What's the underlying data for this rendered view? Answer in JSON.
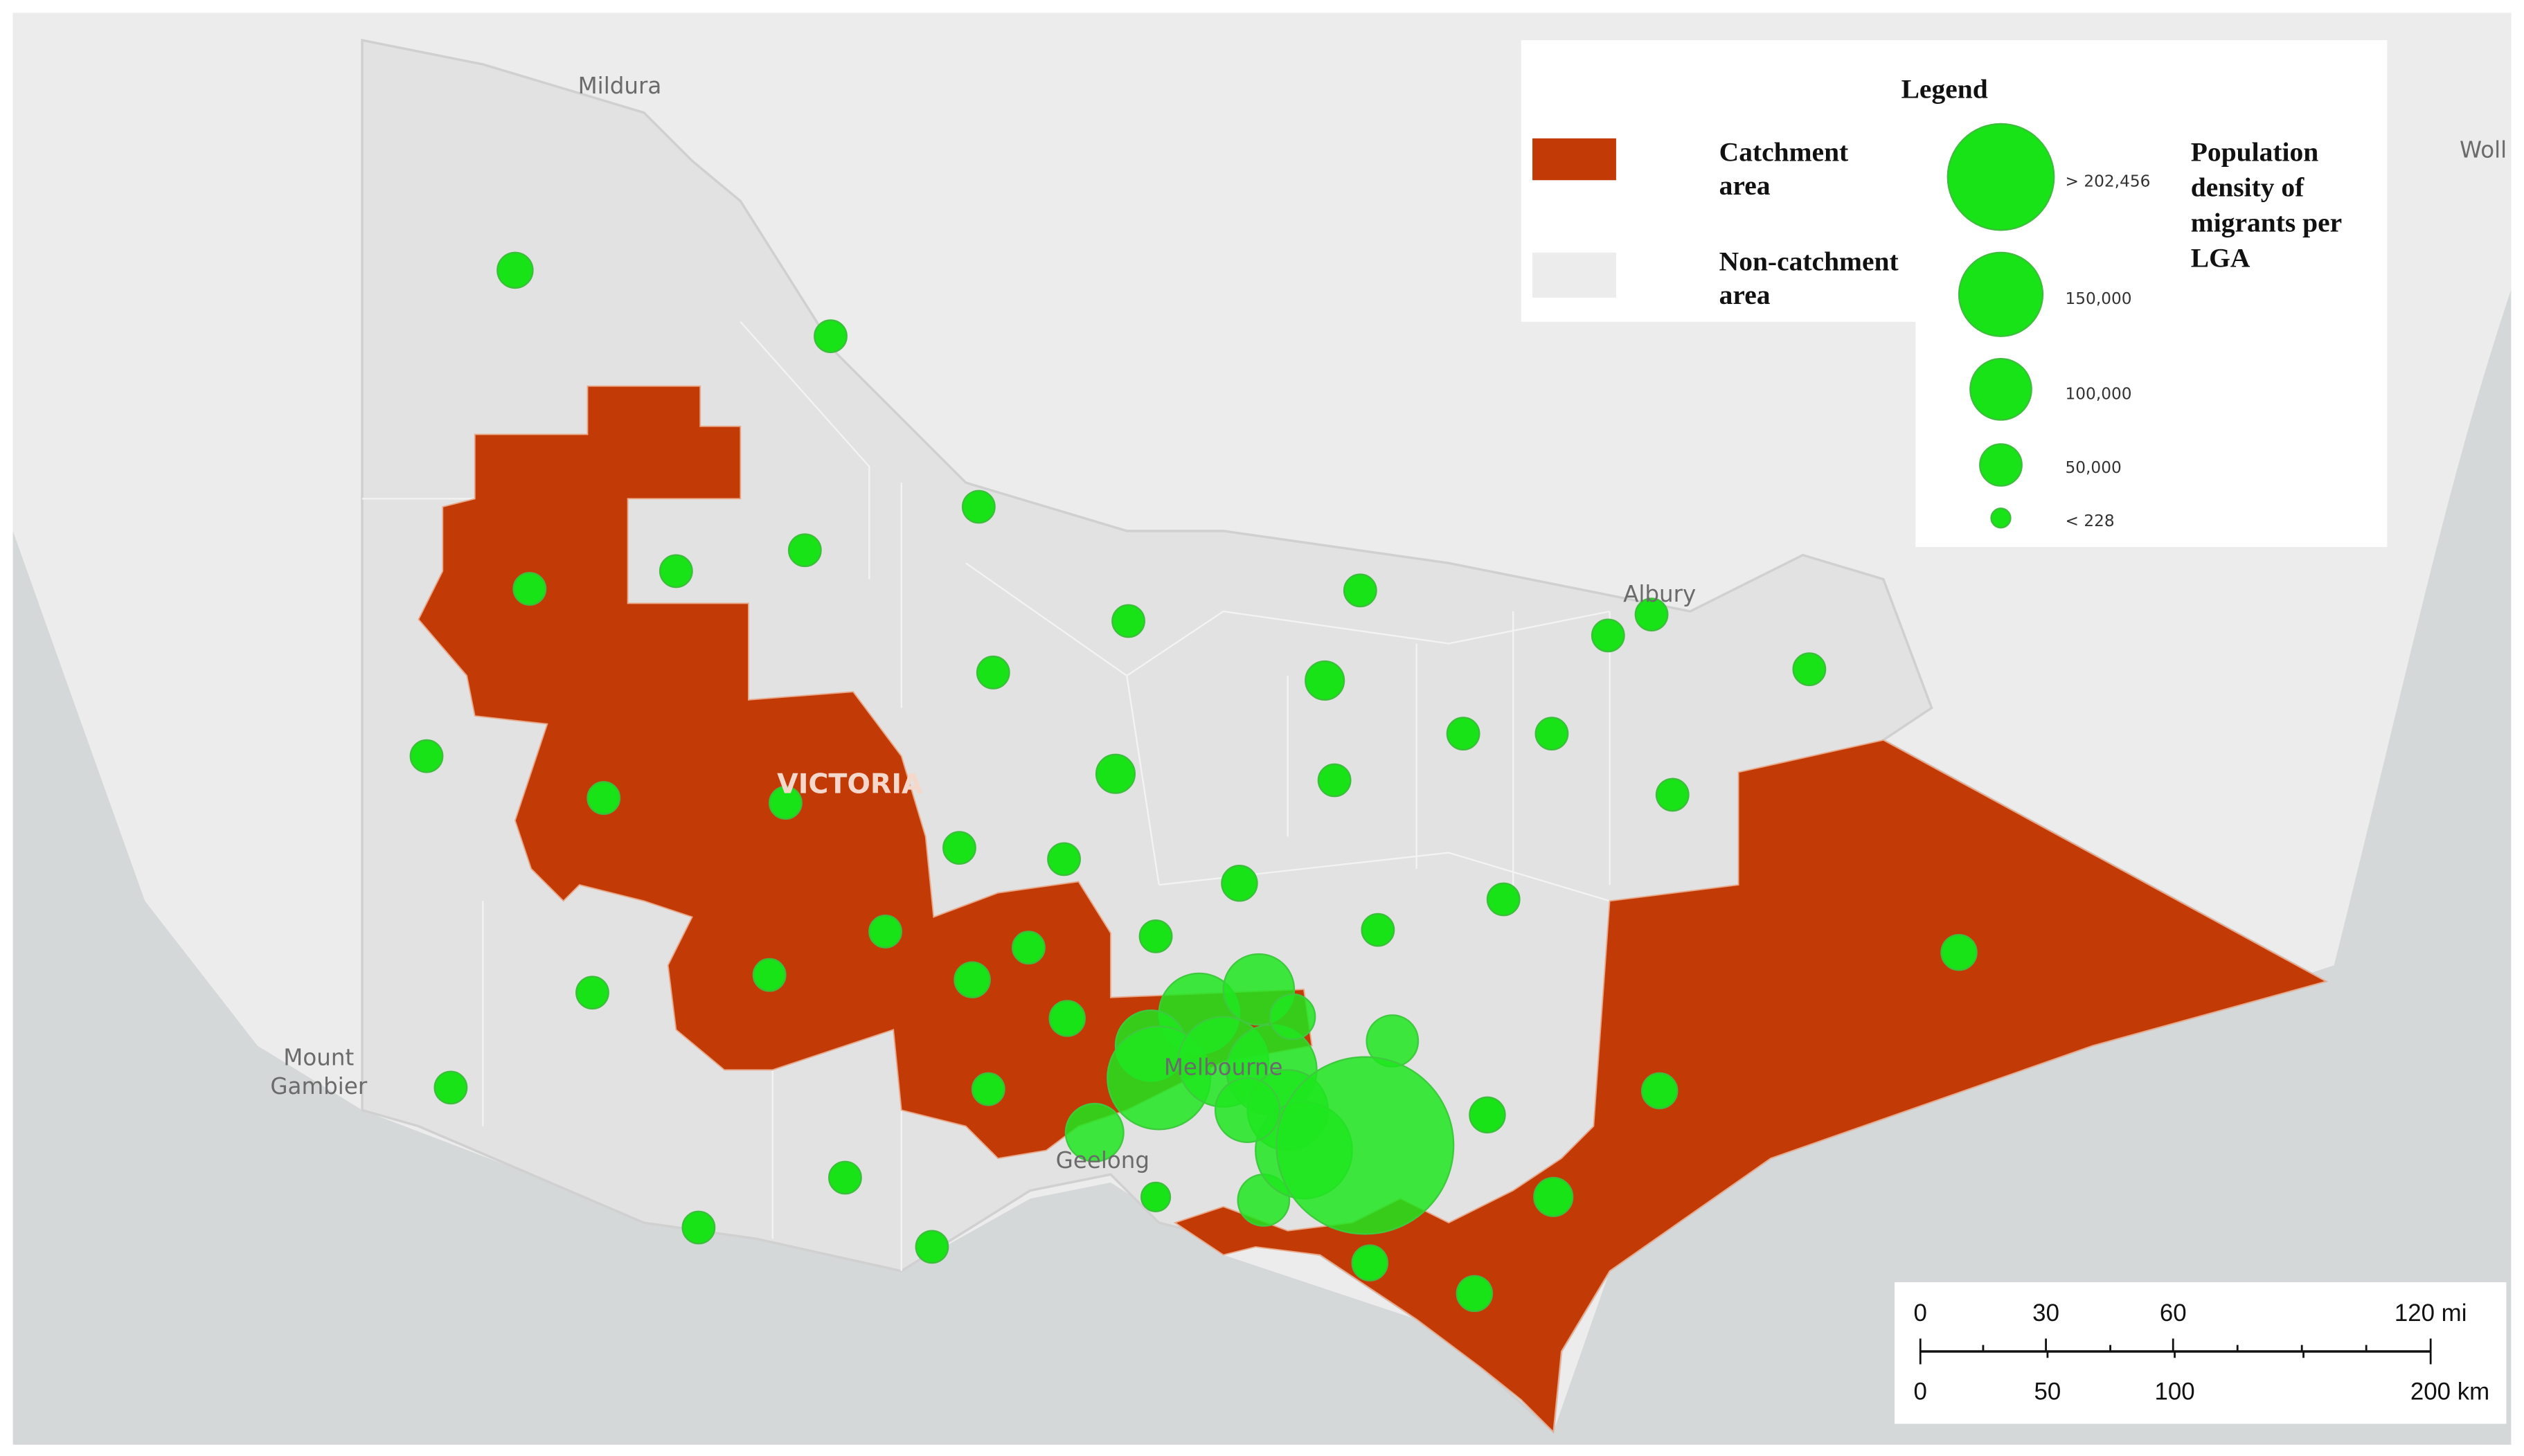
{
  "places": [
    "Mildura",
    "Albury",
    "Mount",
    "Gambier",
    "Geelong",
    "Melbourne",
    "Woll",
    "VICTORIA"
  ],
  "legend": {
    "title": "Legend",
    "catchment": [
      "Catchment",
      "area"
    ],
    "non_catchment": [
      "Non-catchment",
      "area"
    ],
    "sizes": [
      "> 202,456",
      "150,000",
      "100,000",
      "50,000",
      "< 228"
    ],
    "population": [
      "Population",
      "density of",
      "migrants per",
      "LGA"
    ]
  },
  "scale": {
    "miles": [
      "0",
      "30",
      "60",
      "120 mi"
    ],
    "km": [
      "0",
      "50",
      "100",
      "200 km"
    ]
  }
}
